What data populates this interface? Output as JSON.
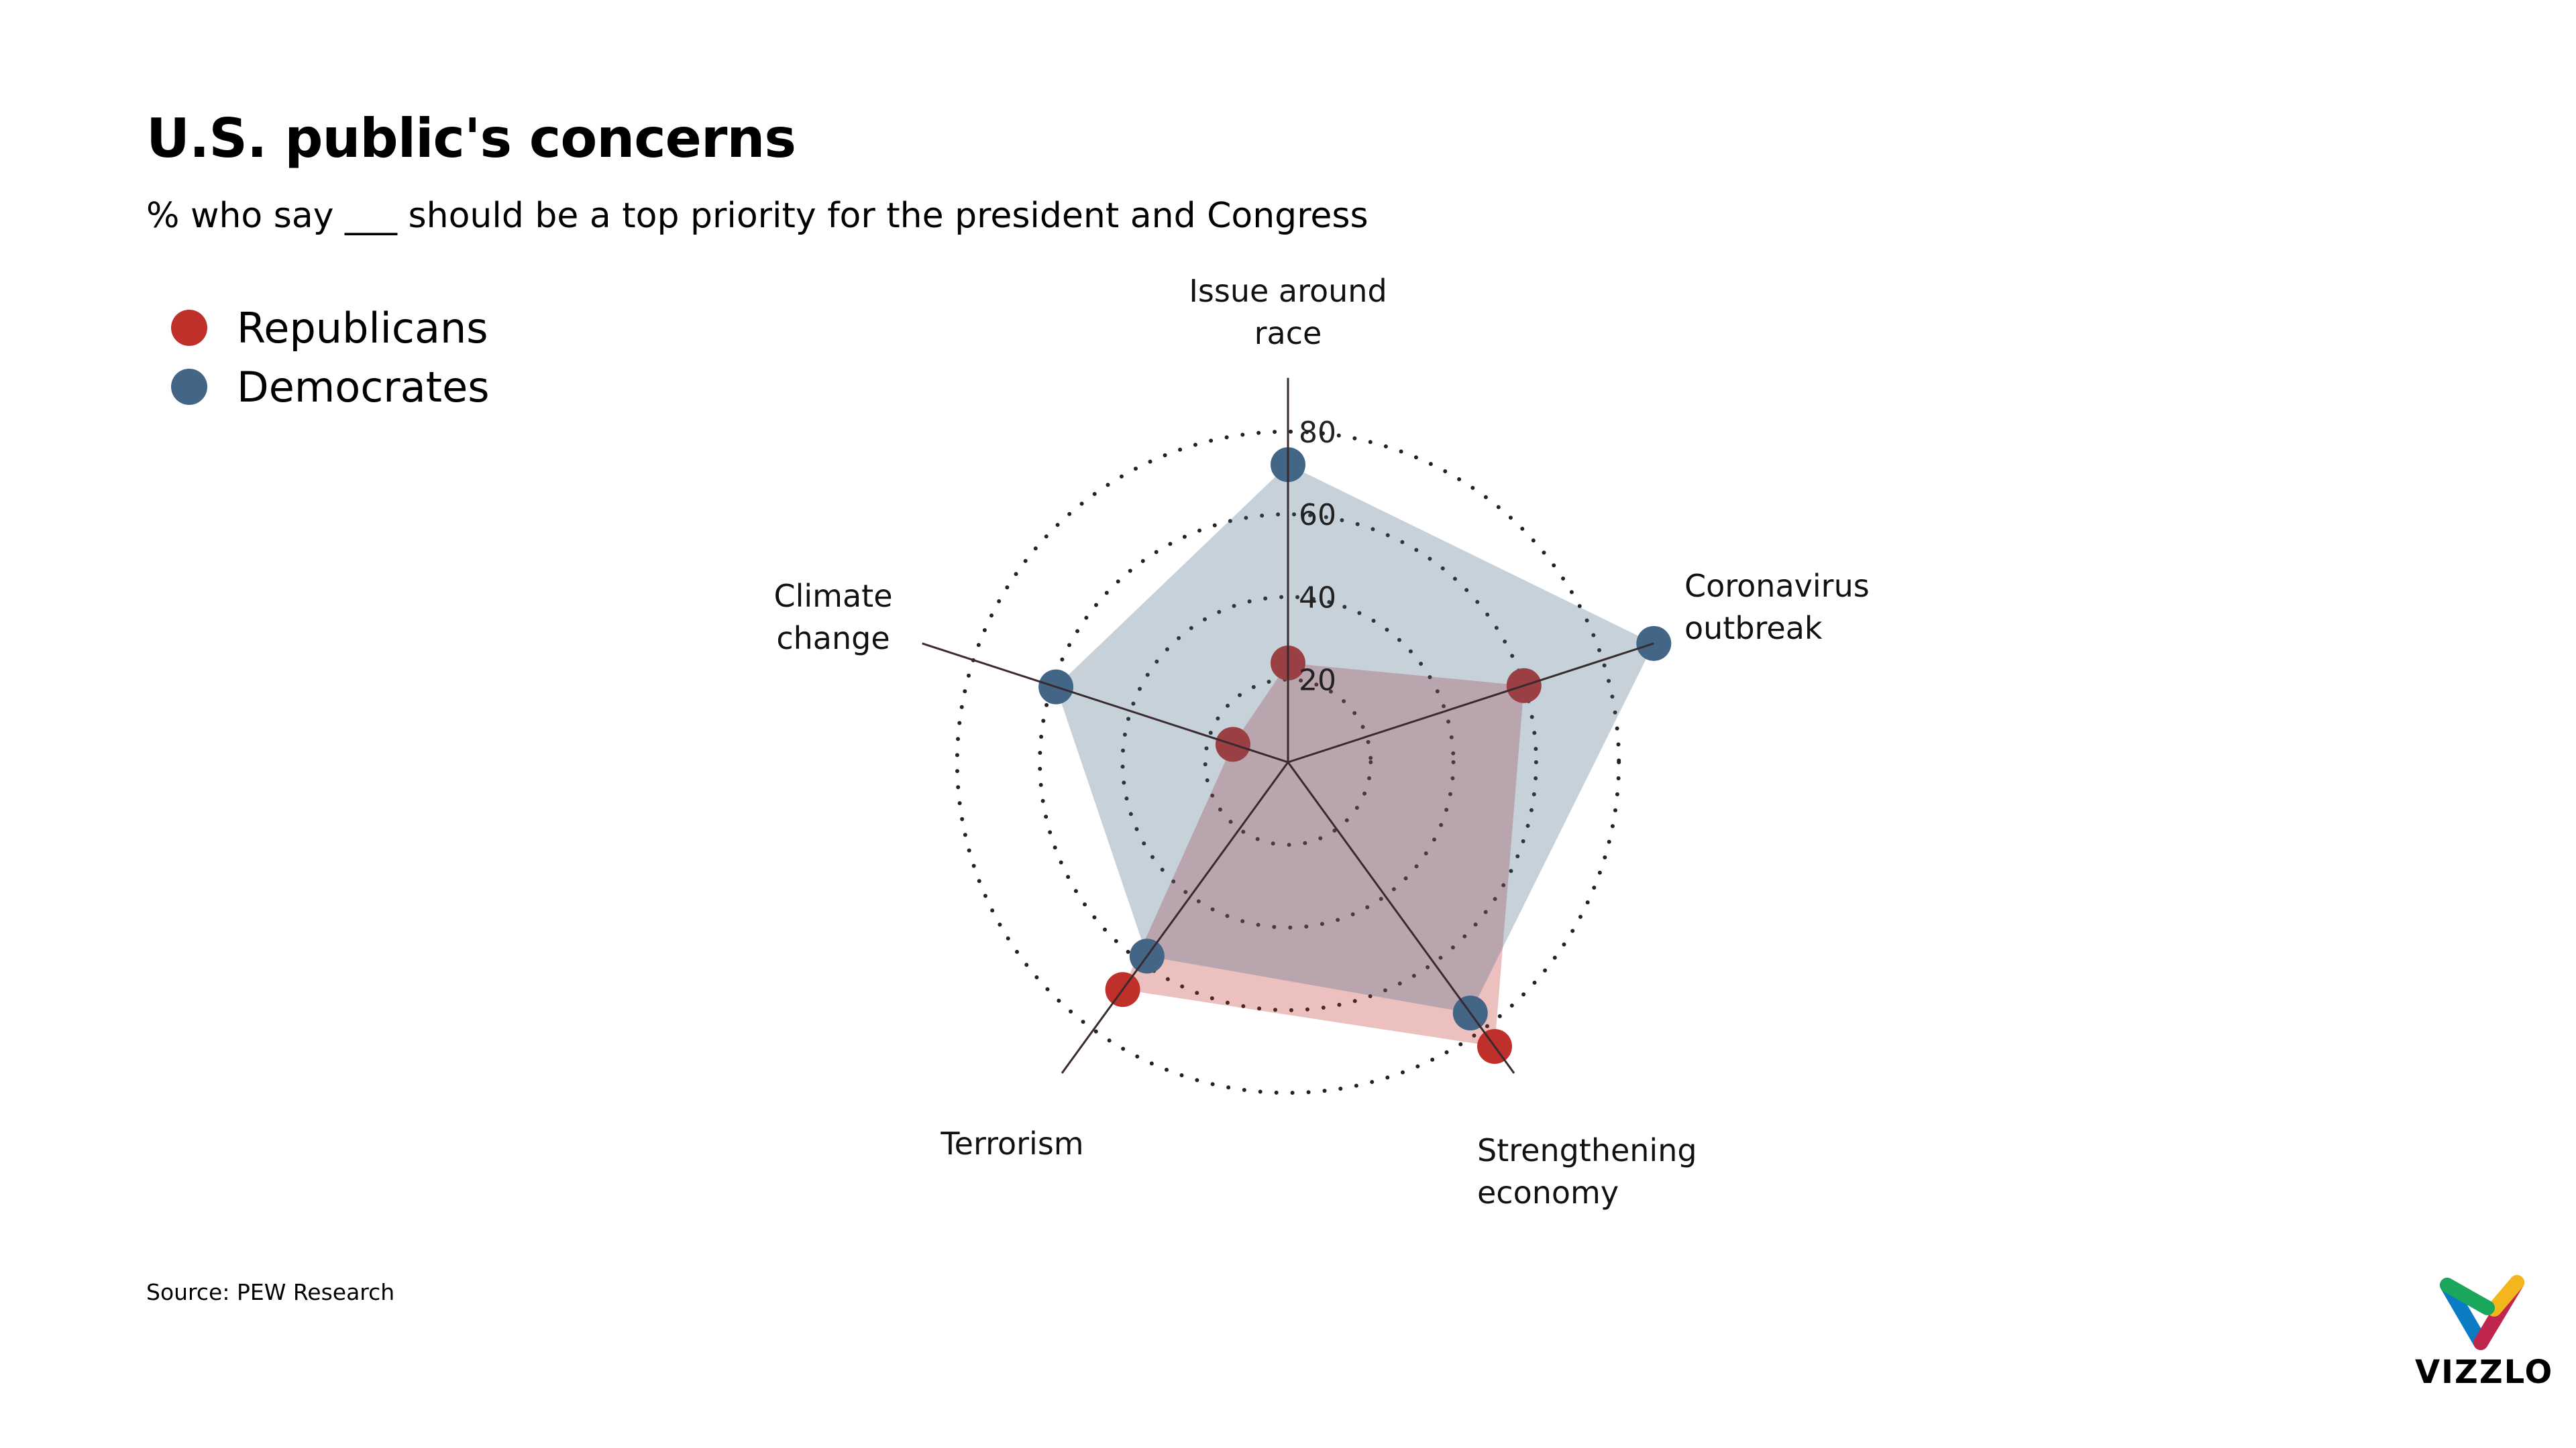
{
  "header": {
    "title": "U.S. public's concerns",
    "subtitle": "% who say ___ should be a top priority for the president and Congress"
  },
  "footer": {
    "source": "Source: PEW Research"
  },
  "logo": {
    "text": "VIZZLO",
    "colors": [
      "#1aa65b",
      "#f5b51c",
      "#0b7bc4",
      "#c0264b"
    ]
  },
  "chart_data": {
    "type": "radar",
    "title": "",
    "categories": [
      "Issue around race",
      "Coronavirus outbreak",
      "Strengthening economy",
      "Terrorism",
      "Climate change"
    ],
    "category_lines": [
      [
        "Issue around",
        "race"
      ],
      [
        "Coronavirus",
        "outbreak"
      ],
      [
        "Strengthening",
        "economy"
      ],
      [
        "Terrorism"
      ],
      [
        "Climate",
        "change"
      ]
    ],
    "series": [
      {
        "name": "Republicans",
        "color": "#c0302a",
        "values": [
          24,
          60,
          85,
          68,
          14
        ]
      },
      {
        "name": "Democrates",
        "color": "#436686",
        "values": [
          72,
          93,
          75,
          58,
          59
        ]
      }
    ],
    "rlim": [
      0,
      93
    ],
    "ticks": [
      20,
      40,
      60,
      80
    ],
    "tick_labels": [
      "20",
      "40",
      "60",
      "80"
    ],
    "grid": "dotted circles",
    "legend_position": "top-left"
  }
}
